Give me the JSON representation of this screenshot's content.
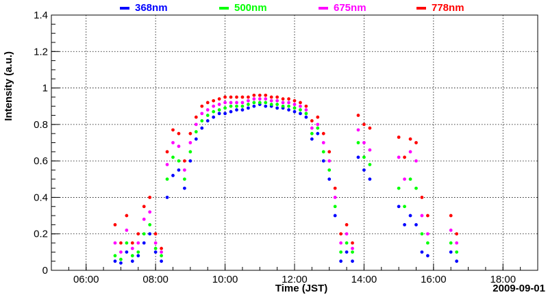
{
  "chart_data": {
    "type": "scatter",
    "title": "",
    "xlabel": "Time (JST)",
    "ylabel": "Intensity (a.u.)",
    "date_label": "2009-09-01",
    "xlim": [
      "05:00",
      "19:00"
    ],
    "ylim": [
      0,
      1.4
    ],
    "x_ticks": [
      "06:00",
      "08:00",
      "10:00",
      "12:00",
      "14:00",
      "16:00",
      "18:00"
    ],
    "y_ticks": [
      "0",
      "0.2",
      "0.4",
      "0.6",
      "0.8",
      "1",
      "1.2",
      "1.4"
    ],
    "grid": true,
    "legend_position": "top",
    "series": [
      {
        "name": "368nm",
        "color": "#0000ff",
        "points": [
          [
            "06:50",
            0.05
          ],
          [
            "07:00",
            0.04
          ],
          [
            "07:10",
            0.1
          ],
          [
            "07:20",
            0.05
          ],
          [
            "07:30",
            0.08
          ],
          [
            "07:40",
            0.15
          ],
          [
            "07:50",
            0.2
          ],
          [
            "08:00",
            0.1
          ],
          [
            "08:10",
            0.05
          ],
          [
            "08:20",
            0.4
          ],
          [
            "08:30",
            0.52
          ],
          [
            "08:40",
            0.55
          ],
          [
            "08:50",
            0.45
          ],
          [
            "09:00",
            0.6
          ],
          [
            "09:10",
            0.72
          ],
          [
            "09:20",
            0.78
          ],
          [
            "09:30",
            0.82
          ],
          [
            "09:40",
            0.84
          ],
          [
            "09:50",
            0.86
          ],
          [
            "10:00",
            0.86
          ],
          [
            "10:10",
            0.87
          ],
          [
            "10:20",
            0.88
          ],
          [
            "10:30",
            0.88
          ],
          [
            "10:40",
            0.89
          ],
          [
            "10:50",
            0.9
          ],
          [
            "11:00",
            0.91
          ],
          [
            "11:10",
            0.9
          ],
          [
            "11:20",
            0.9
          ],
          [
            "11:30",
            0.89
          ],
          [
            "11:40",
            0.89
          ],
          [
            "11:50",
            0.88
          ],
          [
            "12:00",
            0.87
          ],
          [
            "12:10",
            0.86
          ],
          [
            "12:20",
            0.84
          ],
          [
            "12:30",
            0.72
          ],
          [
            "12:40",
            0.75
          ],
          [
            "12:50",
            0.6
          ],
          [
            "13:00",
            0.5
          ],
          [
            "13:10",
            0.3
          ],
          [
            "13:20",
            0.05
          ],
          [
            "13:30",
            0.1
          ],
          [
            "13:40",
            0.05
          ],
          [
            "13:50",
            0.62
          ],
          [
            "14:00",
            0.55
          ],
          [
            "14:10",
            0.5
          ],
          [
            "15:00",
            0.35
          ],
          [
            "15:10",
            0.25
          ],
          [
            "15:20",
            0.3
          ],
          [
            "15:30",
            0.25
          ],
          [
            "15:40",
            0.1
          ],
          [
            "15:50",
            0.08
          ],
          [
            "16:30",
            0.1
          ],
          [
            "16:40",
            0.05
          ]
        ]
      },
      {
        "name": "500nm",
        "color": "#00ff00",
        "points": [
          [
            "06:50",
            0.08
          ],
          [
            "07:00",
            0.06
          ],
          [
            "07:10",
            0.15
          ],
          [
            "07:20",
            0.08
          ],
          [
            "07:30",
            0.1
          ],
          [
            "07:40",
            0.2
          ],
          [
            "07:50",
            0.25
          ],
          [
            "08:00",
            0.12
          ],
          [
            "08:10",
            0.08
          ],
          [
            "08:20",
            0.5
          ],
          [
            "08:30",
            0.62
          ],
          [
            "08:40",
            0.6
          ],
          [
            "08:50",
            0.5
          ],
          [
            "09:00",
            0.65
          ],
          [
            "09:10",
            0.76
          ],
          [
            "09:20",
            0.82
          ],
          [
            "09:30",
            0.85
          ],
          [
            "09:40",
            0.87
          ],
          [
            "09:50",
            0.88
          ],
          [
            "10:00",
            0.89
          ],
          [
            "10:10",
            0.9
          ],
          [
            "10:20",
            0.9
          ],
          [
            "10:30",
            0.9
          ],
          [
            "10:40",
            0.91
          ],
          [
            "10:50",
            0.92
          ],
          [
            "11:00",
            0.92
          ],
          [
            "11:10",
            0.92
          ],
          [
            "11:20",
            0.91
          ],
          [
            "11:30",
            0.91
          ],
          [
            "11:40",
            0.9
          ],
          [
            "11:50",
            0.9
          ],
          [
            "12:00",
            0.89
          ],
          [
            "12:10",
            0.88
          ],
          [
            "12:20",
            0.86
          ],
          [
            "12:30",
            0.75
          ],
          [
            "12:40",
            0.78
          ],
          [
            "12:50",
            0.65
          ],
          [
            "13:00",
            0.55
          ],
          [
            "13:10",
            0.35
          ],
          [
            "13:20",
            0.1
          ],
          [
            "13:30",
            0.15
          ],
          [
            "13:40",
            0.1
          ],
          [
            "13:50",
            0.7
          ],
          [
            "14:00",
            0.62
          ],
          [
            "14:10",
            0.58
          ],
          [
            "15:00",
            0.45
          ],
          [
            "15:10",
            0.35
          ],
          [
            "15:20",
            0.5
          ],
          [
            "15:30",
            0.45
          ],
          [
            "15:40",
            0.2
          ],
          [
            "15:50",
            0.15
          ],
          [
            "16:30",
            0.15
          ],
          [
            "16:40",
            0.1
          ]
        ]
      },
      {
        "name": "675nm",
        "color": "#ff00ff",
        "points": [
          [
            "06:50",
            0.15
          ],
          [
            "07:00",
            0.1
          ],
          [
            "07:10",
            0.22
          ],
          [
            "07:20",
            0.12
          ],
          [
            "07:30",
            0.15
          ],
          [
            "07:40",
            0.28
          ],
          [
            "07:50",
            0.32
          ],
          [
            "08:00",
            0.15
          ],
          [
            "08:10",
            0.1
          ],
          [
            "08:20",
            0.58
          ],
          [
            "08:30",
            0.7
          ],
          [
            "08:40",
            0.68
          ],
          [
            "08:50",
            0.55
          ],
          [
            "09:00",
            0.7
          ],
          [
            "09:10",
            0.8
          ],
          [
            "09:20",
            0.86
          ],
          [
            "09:30",
            0.88
          ],
          [
            "09:40",
            0.9
          ],
          [
            "09:50",
            0.91
          ],
          [
            "10:00",
            0.92
          ],
          [
            "10:10",
            0.92
          ],
          [
            "10:20",
            0.92
          ],
          [
            "10:30",
            0.92
          ],
          [
            "10:40",
            0.93
          ],
          [
            "10:50",
            0.94
          ],
          [
            "11:00",
            0.94
          ],
          [
            "11:10",
            0.94
          ],
          [
            "11:20",
            0.93
          ],
          [
            "11:30",
            0.93
          ],
          [
            "11:40",
            0.92
          ],
          [
            "11:50",
            0.92
          ],
          [
            "12:00",
            0.91
          ],
          [
            "12:10",
            0.9
          ],
          [
            "12:20",
            0.88
          ],
          [
            "12:30",
            0.78
          ],
          [
            "12:40",
            0.8
          ],
          [
            "12:50",
            0.7
          ],
          [
            "13:00",
            0.6
          ],
          [
            "13:10",
            0.4
          ],
          [
            "13:20",
            0.15
          ],
          [
            "13:30",
            0.2
          ],
          [
            "13:40",
            0.12
          ],
          [
            "13:50",
            0.77
          ],
          [
            "14:00",
            0.7
          ],
          [
            "14:10",
            0.66
          ],
          [
            "15:00",
            0.62
          ],
          [
            "15:10",
            0.5
          ],
          [
            "15:20",
            0.65
          ],
          [
            "15:30",
            0.6
          ],
          [
            "15:40",
            0.3
          ],
          [
            "15:50",
            0.2
          ],
          [
            "16:30",
            0.22
          ],
          [
            "16:40",
            0.15
          ]
        ]
      },
      {
        "name": "778nm",
        "color": "#ff0000",
        "points": [
          [
            "06:50",
            0.25
          ],
          [
            "07:00",
            0.15
          ],
          [
            "07:10",
            0.3
          ],
          [
            "07:20",
            0.15
          ],
          [
            "07:30",
            0.2
          ],
          [
            "07:40",
            0.35
          ],
          [
            "07:50",
            0.4
          ],
          [
            "08:00",
            0.2
          ],
          [
            "08:10",
            0.12
          ],
          [
            "08:20",
            0.65
          ],
          [
            "08:30",
            0.77
          ],
          [
            "08:40",
            0.75
          ],
          [
            "08:50",
            0.6
          ],
          [
            "09:00",
            0.75
          ],
          [
            "09:10",
            0.84
          ],
          [
            "09:20",
            0.9
          ],
          [
            "09:30",
            0.92
          ],
          [
            "09:40",
            0.93
          ],
          [
            "09:50",
            0.94
          ],
          [
            "10:00",
            0.95
          ],
          [
            "10:10",
            0.95
          ],
          [
            "10:20",
            0.95
          ],
          [
            "10:30",
            0.95
          ],
          [
            "10:40",
            0.95
          ],
          [
            "10:50",
            0.96
          ],
          [
            "11:00",
            0.96
          ],
          [
            "11:10",
            0.96
          ],
          [
            "11:20",
            0.95
          ],
          [
            "11:30",
            0.95
          ],
          [
            "11:40",
            0.94
          ],
          [
            "11:50",
            0.94
          ],
          [
            "12:00",
            0.93
          ],
          [
            "12:10",
            0.92
          ],
          [
            "12:20",
            0.9
          ],
          [
            "12:30",
            0.82
          ],
          [
            "12:40",
            0.84
          ],
          [
            "12:50",
            0.75
          ],
          [
            "13:00",
            0.65
          ],
          [
            "13:10",
            0.45
          ],
          [
            "13:20",
            0.2
          ],
          [
            "13:30",
            0.25
          ],
          [
            "13:40",
            0.15
          ],
          [
            "13:50",
            0.85
          ],
          [
            "14:00",
            0.8
          ],
          [
            "14:10",
            0.78
          ],
          [
            "15:00",
            0.73
          ],
          [
            "15:10",
            0.62
          ],
          [
            "15:20",
            0.72
          ],
          [
            "15:30",
            0.7
          ],
          [
            "15:40",
            0.4
          ],
          [
            "15:50",
            0.3
          ],
          [
            "16:30",
            0.3
          ],
          [
            "16:40",
            0.2
          ]
        ]
      }
    ]
  }
}
